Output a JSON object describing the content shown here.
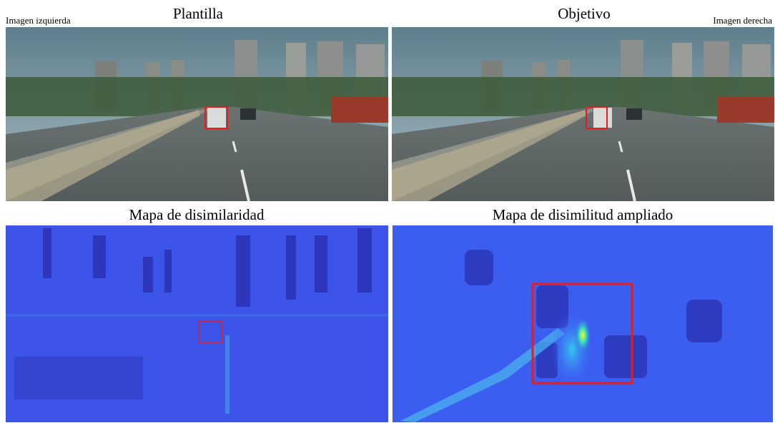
{
  "labels": {
    "left_image": "Imagen izquierda",
    "right_image": "Imagen derecha"
  },
  "panels": [
    {
      "title": "Plantilla"
    },
    {
      "title": "Objetivo"
    },
    {
      "title": "Mapa de disimilaridad"
    },
    {
      "title": "Mapa de disimilitud ampliado"
    }
  ]
}
